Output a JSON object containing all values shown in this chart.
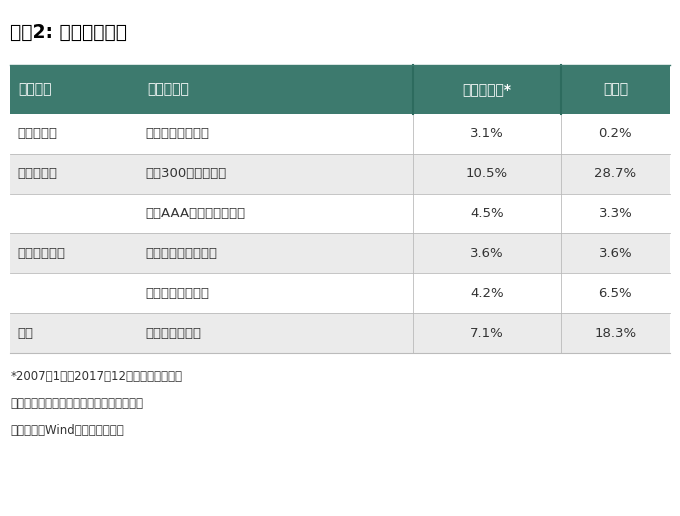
{
  "title": "表格2: 主要资产类别",
  "header": [
    "资产类别",
    "代表性指数",
    "名义收益率*",
    "波动率"
  ],
  "header_bg": "#3d7a6e",
  "header_text_color": "#ffffff",
  "rows": [
    {
      "asset": "流动性资产",
      "index": "中证货币基金指数",
      "return": "3.1%",
      "volatility": "0.2%",
      "shaded": false
    },
    {
      "asset": "权益类资产",
      "index": "沪深300全收益指数",
      "return": "10.5%",
      "volatility": "28.7%",
      "shaded": true
    },
    {
      "asset": "",
      "index": "中债AAA企业债财富指数",
      "return": "4.5%",
      "volatility": "3.3%",
      "shaded": false
    },
    {
      "asset": "固定收益资产",
      "index": "中债金融债财富指数",
      "return": "3.6%",
      "volatility": "3.6%",
      "shaded": true
    },
    {
      "asset": "",
      "index": "中债国债财富指数",
      "return": "4.2%",
      "volatility": "6.5%",
      "shaded": false
    },
    {
      "asset": "黄金",
      "index": "人民币计价黄金",
      "return": "7.1%",
      "volatility": "18.3%",
      "shaded": true
    }
  ],
  "footnotes": [
    "*2007年1月至2017年12月年化名义收益率",
    "注：收益率是总收益率，没有考虑交易成本",
    "数据来源：Wind；世界黄金协会"
  ],
  "shaded_bg": "#ebebeb",
  "white_bg": "#ffffff",
  "outer_bg": "#ffffff",
  "title_color": "#000000",
  "footnote_color": "#333333",
  "row_text_color": "#333333",
  "divider_color": "#bbbbbb",
  "header_bg_line": "#2d6b5e"
}
